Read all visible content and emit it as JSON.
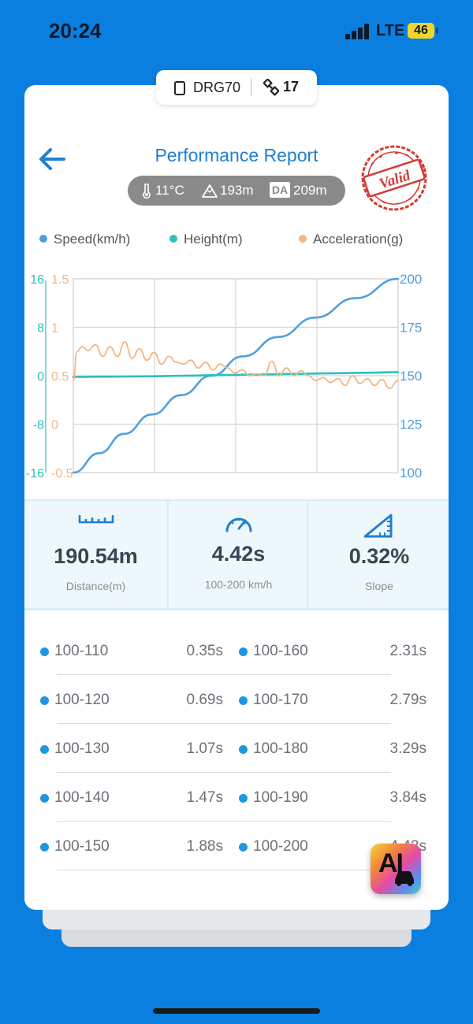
{
  "status_bar": {
    "time": "20:24",
    "network": "LTE",
    "battery": "46"
  },
  "device": {
    "name": "DRG70",
    "satellites": "17"
  },
  "header": {
    "title": "Performance Report"
  },
  "conditions": {
    "temperature": "11°C",
    "altitude": "193m",
    "da_label": "DA",
    "density_altitude": "209m"
  },
  "stamp": {
    "text": "Valid"
  },
  "legend": [
    {
      "label": "Speed(km/h)",
      "color": "#4e9fe0"
    },
    {
      "label": "Height(m)",
      "color": "#2bbfc0"
    },
    {
      "label": "Acceleration(g)",
      "color": "#f2b683"
    }
  ],
  "chart_data": {
    "type": "line",
    "height_axis": {
      "ticks": [
        "16",
        "8",
        "0",
        "-8",
        "-16"
      ],
      "range": [
        -16,
        16
      ],
      "color": "#2bbfc0"
    },
    "accel_axis": {
      "ticks": [
        "1.5",
        "1",
        "0.5",
        "0",
        "-0.5"
      ],
      "range": [
        -0.5,
        1.5
      ],
      "color": "#f2b683"
    },
    "speed_axis": {
      "ticks": [
        "200",
        "175",
        "150",
        "125",
        "100"
      ],
      "range": [
        100,
        200
      ],
      "color": "#4e9fe0"
    },
    "x_range": [
      0,
      4.42
    ],
    "series": [
      {
        "name": "Speed(km/h)",
        "color": "#4e9fe0",
        "axis": "speed_axis",
        "x": [
          0,
          0.35,
          0.69,
          1.07,
          1.47,
          1.88,
          2.31,
          2.79,
          3.29,
          3.84,
          4.42
        ],
        "y": [
          100,
          110,
          120,
          130,
          140,
          150,
          160,
          170,
          180,
          190,
          200
        ]
      },
      {
        "name": "Height(m)",
        "color": "#2bbfc0",
        "axis": "height_axis",
        "x": [
          0,
          0.5,
          1.0,
          1.5,
          2.0,
          2.5,
          3.0,
          3.5,
          4.0,
          4.42
        ],
        "y": [
          -0.2,
          -0.15,
          -0.1,
          0,
          0.1,
          0.2,
          0.3,
          0.4,
          0.5,
          0.6
        ]
      },
      {
        "name": "Acceleration(g)",
        "color": "#f2b683",
        "axis": "accel_axis",
        "x": [
          0,
          0.05,
          0.12,
          0.2,
          0.3,
          0.4,
          0.5,
          0.6,
          0.7,
          0.8,
          0.9,
          1.0,
          1.1,
          1.2,
          1.3,
          1.4,
          1.5,
          1.6,
          1.7,
          1.8,
          1.9,
          2.0,
          2.1,
          2.2,
          2.3,
          2.4,
          2.5,
          2.6,
          2.7,
          2.8,
          2.9,
          3.0,
          3.1,
          3.2,
          3.3,
          3.4,
          3.5,
          3.6,
          3.7,
          3.8,
          3.9,
          4.0,
          4.1,
          4.2,
          4.3,
          4.42
        ],
        "y": [
          0.45,
          0.75,
          0.8,
          0.76,
          0.82,
          0.7,
          0.8,
          0.7,
          0.85,
          0.68,
          0.78,
          0.66,
          0.74,
          0.62,
          0.7,
          0.64,
          0.62,
          0.66,
          0.58,
          0.64,
          0.56,
          0.62,
          0.58,
          0.53,
          0.56,
          0.5,
          0.52,
          0.5,
          0.65,
          0.5,
          0.58,
          0.5,
          0.55,
          0.5,
          0.45,
          0.48,
          0.43,
          0.47,
          0.4,
          0.5,
          0.42,
          0.47,
          0.4,
          0.46,
          0.37,
          0.45
        ]
      }
    ]
  },
  "stats": [
    {
      "value": "190.54m",
      "label": "Distance(m)",
      "icon": "ruler-icon"
    },
    {
      "value": "4.42s",
      "label": "100-200 km/h",
      "icon": "speedometer-icon"
    },
    {
      "value": "0.32%",
      "label": "Slope",
      "icon": "slope-icon"
    }
  ],
  "splits": [
    {
      "range": "100-110",
      "time": "0.35s"
    },
    {
      "range": "100-120",
      "time": "0.69s"
    },
    {
      "range": "100-130",
      "time": "1.07s"
    },
    {
      "range": "100-140",
      "time": "1.47s"
    },
    {
      "range": "100-150",
      "time": "1.88s"
    },
    {
      "range": "100-160",
      "time": "2.31s"
    },
    {
      "range": "100-170",
      "time": "2.79s"
    },
    {
      "range": "100-180",
      "time": "3.29s"
    },
    {
      "range": "100-190",
      "time": "3.84s"
    },
    {
      "range": "100-200",
      "time": "4.42s"
    }
  ],
  "ai_badge": {
    "text": "AI"
  }
}
